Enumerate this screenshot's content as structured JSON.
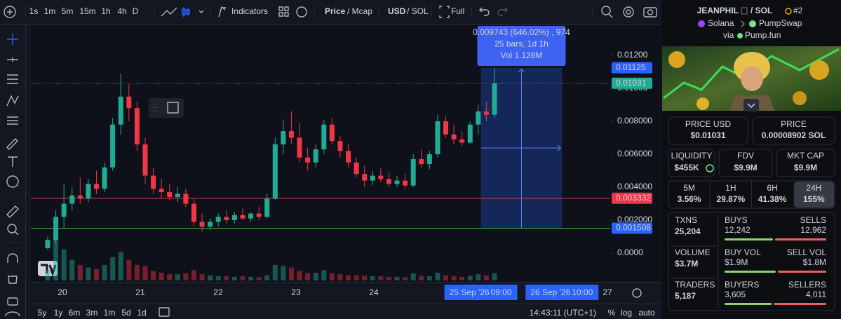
{
  "toolbar": {
    "intervals": [
      "1s",
      "1m",
      "5m",
      "15m",
      "1h",
      "4h",
      "D"
    ],
    "active_interval": "1h",
    "indicators": "Indicators",
    "price": "Price",
    "mcap": "/ Mcap",
    "usd": "USD",
    "sol": "/ SOL",
    "full": "Full"
  },
  "chart_data": {
    "type": "candlestick",
    "open": [
      0.0003,
      0.0008,
      0.0022,
      0.003,
      0.0035,
      0.0033,
      0.0042,
      0.0039,
      0.0052,
      0.0078,
      0.0095,
      0.0088,
      0.0066,
      0.0047,
      0.0039,
      0.0037,
      0.0034,
      0.0036,
      0.003,
      0.0019,
      0.0016,
      0.0019,
      0.0022,
      0.002,
      0.0023,
      0.0021,
      0.0024,
      0.0022,
      0.0033,
      0.0066,
      0.0074,
      0.007,
      0.0058,
      0.0055,
      0.0063,
      0.0078,
      0.0068,
      0.0062,
      0.0055,
      0.0048,
      0.0044,
      0.0047,
      0.0045,
      0.0042,
      0.0044,
      0.0041,
      0.0057,
      0.0054,
      0.006,
      0.008,
      0.0072,
      0.0069,
      0.0067,
      0.0078,
      0.0086,
      0.0084
    ],
    "high": [
      0.001,
      0.0026,
      0.0042,
      0.004,
      0.0046,
      0.0045,
      0.005,
      0.0055,
      0.0082,
      0.0109,
      0.0103,
      0.0092,
      0.007,
      0.0052,
      0.0045,
      0.0042,
      0.004,
      0.0039,
      0.0033,
      0.0024,
      0.0021,
      0.0024,
      0.0026,
      0.0025,
      0.0027,
      0.0025,
      0.0028,
      0.0036,
      0.007,
      0.0081,
      0.0086,
      0.0079,
      0.0064,
      0.0066,
      0.0081,
      0.0082,
      0.0071,
      0.0066,
      0.0058,
      0.0053,
      0.005,
      0.0052,
      0.0049,
      0.0047,
      0.0048,
      0.006,
      0.0063,
      0.0062,
      0.0084,
      0.0083,
      0.0078,
      0.0074,
      0.008,
      0.009,
      0.0092,
      0.01125
    ],
    "low": [
      0.0002,
      0.0006,
      0.0015,
      0.0026,
      0.003,
      0.0031,
      0.0036,
      0.0037,
      0.005,
      0.0072,
      0.008,
      0.0062,
      0.0042,
      0.0036,
      0.0033,
      0.0032,
      0.0031,
      0.0028,
      0.0016,
      0.0013,
      0.0014,
      0.0016,
      0.0018,
      0.0018,
      0.002,
      0.0019,
      0.002,
      0.0021,
      0.0032,
      0.006,
      0.0066,
      0.0055,
      0.005,
      0.0052,
      0.006,
      0.0066,
      0.0058,
      0.0052,
      0.0046,
      0.004,
      0.0041,
      0.0043,
      0.004,
      0.004,
      0.0039,
      0.004,
      0.0052,
      0.0051,
      0.0058,
      0.007,
      0.0066,
      0.0065,
      0.0066,
      0.0072,
      0.008,
      0.0082
    ],
    "close": [
      0.0008,
      0.0022,
      0.003,
      0.0035,
      0.0033,
      0.0042,
      0.0039,
      0.0052,
      0.0078,
      0.0095,
      0.0088,
      0.0066,
      0.0047,
      0.0039,
      0.0037,
      0.0034,
      0.0036,
      0.003,
      0.0019,
      0.0016,
      0.0019,
      0.0022,
      0.002,
      0.0023,
      0.0021,
      0.0024,
      0.0022,
      0.0033,
      0.0066,
      0.0074,
      0.007,
      0.0058,
      0.0055,
      0.0063,
      0.0078,
      0.0068,
      0.0062,
      0.0055,
      0.0048,
      0.0044,
      0.0047,
      0.0045,
      0.0042,
      0.0044,
      0.0041,
      0.0057,
      0.0054,
      0.006,
      0.008,
      0.0072,
      0.0069,
      0.0067,
      0.0078,
      0.0086,
      0.0084,
      0.01031
    ],
    "volume": [
      20,
      95,
      60,
      40,
      30,
      25,
      22,
      30,
      45,
      55,
      40,
      30,
      28,
      18,
      15,
      12,
      12,
      14,
      20,
      12,
      10,
      8,
      8,
      7,
      8,
      7,
      6,
      10,
      30,
      28,
      25,
      18,
      14,
      15,
      20,
      14,
      12,
      10,
      10,
      9,
      8,
      8,
      7,
      7,
      6,
      14,
      9,
      8,
      15,
      10,
      8,
      7,
      9,
      12,
      10,
      14
    ],
    "colors": {
      "up": "#22ab94",
      "down": "#f23645"
    },
    "ylim": [
      -0.00166,
      0.01383
    ],
    "yticks": [
      {
        "value": 0,
        "label": "0.0000"
      },
      {
        "value": 0.002,
        "label": "0.002000"
      },
      {
        "value": 0.004,
        "label": "0.004000"
      },
      {
        "value": 0.006,
        "label": "0.006000"
      },
      {
        "value": 0.008,
        "label": "0.008000"
      },
      {
        "value": 0.01,
        "label": "0.01000"
      },
      {
        "value": 0.012,
        "label": "0.01200"
      }
    ],
    "xlim": [
      19.595,
      27.036
    ],
    "xticks": [
      20,
      21,
      22,
      23,
      24,
      27
    ],
    "range_labels": [
      {
        "value": 25.375,
        "date": "25 Sep '26",
        "time": "09:00"
      },
      {
        "value": 26.417,
        "date": "26 Sep '26",
        "time": "10:00"
      }
    ],
    "price_labels": [
      {
        "value": 0.01125,
        "color": "#2962ff"
      },
      {
        "value": 0.01031,
        "color": "#22ab94",
        "line_color": "#787b86",
        "line_style": "dotted"
      },
      {
        "value": 0.003332,
        "color": "#f23645",
        "line_color": "#f23645"
      },
      {
        "value": 0.001508,
        "color": "#2962ff",
        "line_color": "#4caf50"
      }
    ],
    "tooltip": {
      "line1": "0.009743 (646.02%) , 974",
      "line2": "25 bars, 1d 1h",
      "line3": "Vol 1.128M"
    }
  },
  "bottom_bar": {
    "ranges": [
      "5y",
      "1y",
      "6m",
      "3m",
      "1m",
      "5d",
      "1d"
    ],
    "clock": "14:43:11 (UTC+1)",
    "percent": "%",
    "log": "log",
    "auto": "auto"
  },
  "panel": {
    "pair": "JEANPHIL",
    "quote": "/ SOL",
    "rank": "#2",
    "chain": "Solana",
    "dex": "PumpSwap",
    "via": "via",
    "launchpad": "Pump.fun",
    "price_boxes": [
      {
        "label": "PRICE USD",
        "value": "$0.01031"
      },
      {
        "label": "PRICE",
        "value": "0.00008902 SOL"
      }
    ],
    "metric_boxes": [
      {
        "label": "LIQUIDITY",
        "value": "$455K"
      },
      {
        "label": "FDV",
        "value": "$9.9M"
      },
      {
        "label": "MKT CAP",
        "value": "$9.9M"
      }
    ],
    "changes": [
      {
        "label": "5M",
        "value": "3.56%"
      },
      {
        "label": "1H",
        "value": "29.87%"
      },
      {
        "label": "6H",
        "value": "41.38%"
      },
      {
        "label": "24H",
        "value": "155%"
      }
    ],
    "active_change": "24H",
    "stats": [
      {
        "label": "TXNS",
        "value": "25,204",
        "buy_label": "BUYS",
        "buy": "12,242",
        "sell_label": "SELLS",
        "sell": "12,962"
      },
      {
        "label": "VOLUME",
        "value": "$3.7M",
        "buy_label": "BUY VOL",
        "buy": "$1.9M",
        "sell_label": "SELL VOL",
        "sell": "$1.8M"
      },
      {
        "label": "TRADERS",
        "value": "5,187",
        "buy_label": "BUYERS",
        "buy": "3,605",
        "sell_label": "SELLERS",
        "sell": "4,011"
      }
    ]
  }
}
